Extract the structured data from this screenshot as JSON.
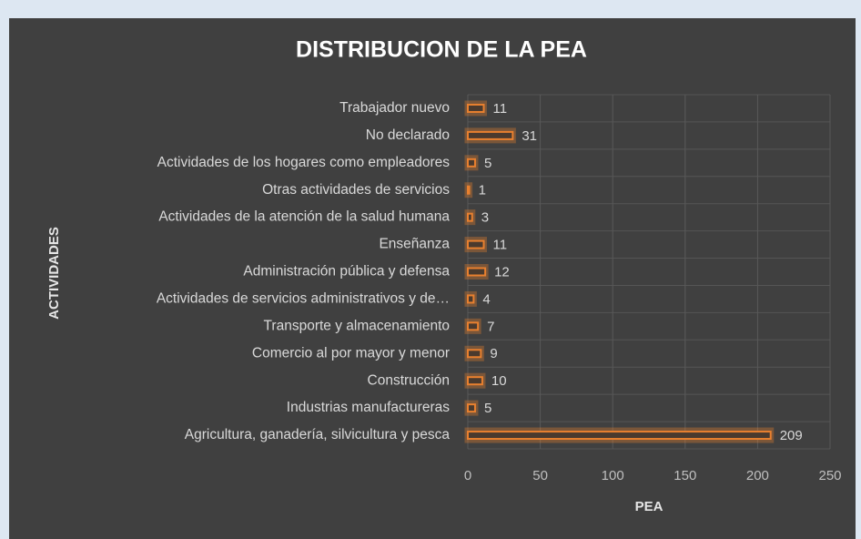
{
  "chart_data": {
    "type": "bar",
    "orientation": "horizontal",
    "title": "DISTRIBUCION DE LA PEA",
    "x_label": "PEA",
    "y_label": "ACTIVIDADES",
    "categories": [
      "Trabajador nuevo",
      "No declarado",
      "Actividades de los hogares como empleadores",
      "Otras actividades de servicios",
      "Actividades de la atención de la salud humana",
      "Enseñanza",
      "Administración pública y defensa",
      "Actividades de servicios administrativos y de…",
      "Transporte y almacenamiento",
      "Comercio al por mayor y menor",
      "Construcción",
      "Industrias manufactureras",
      "Agricultura, ganadería, silvicultura y pesca"
    ],
    "values": [
      11,
      31,
      5,
      1,
      3,
      11,
      12,
      4,
      7,
      9,
      10,
      5,
      209
    ],
    "color": "#e8802f",
    "xlim": [
      0,
      250
    ],
    "xticks": [
      0,
      50,
      100,
      150,
      200,
      250
    ],
    "grid": true
  }
}
